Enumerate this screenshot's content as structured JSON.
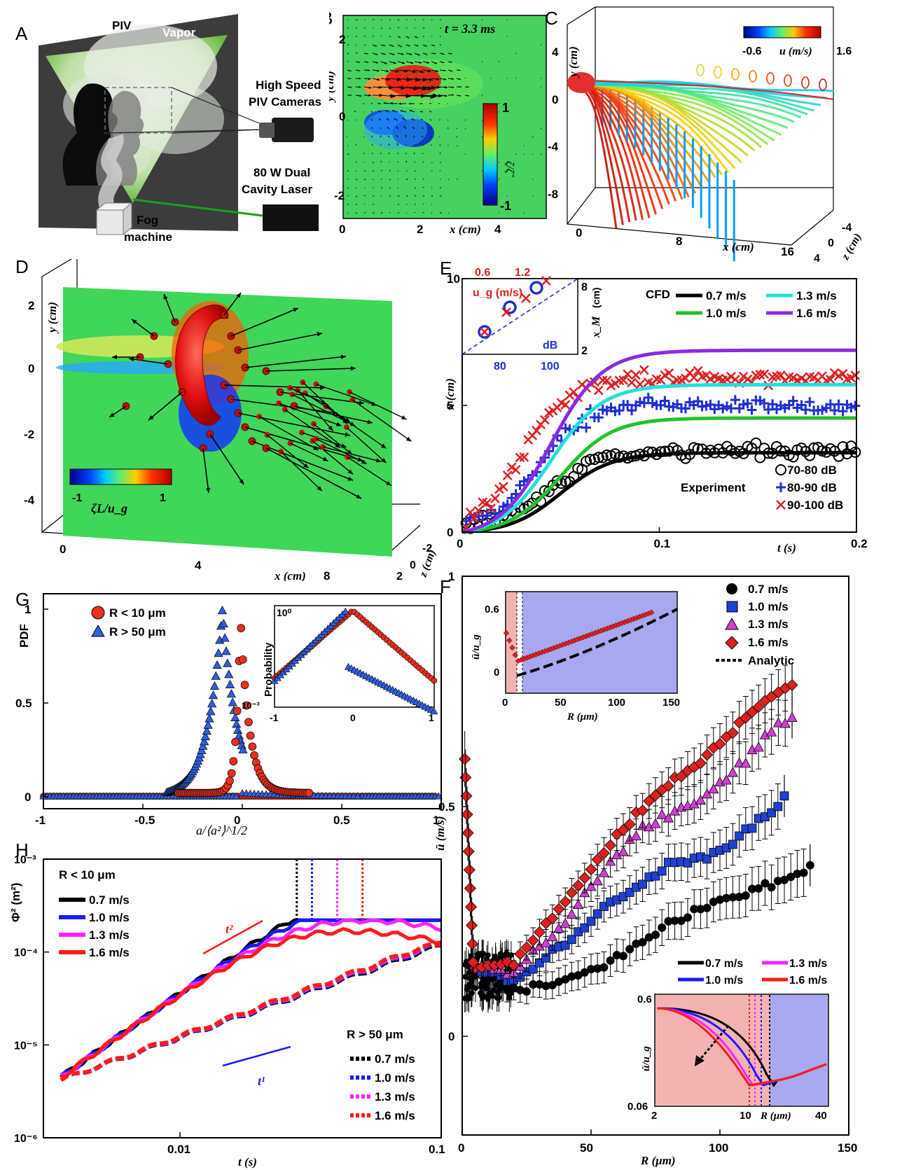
{
  "panels": {
    "A": {
      "letter": "A",
      "labels": {
        "piv": "PIV",
        "vapor": "Vapor",
        "cameras": [
          "High Speed",
          "PIV Cameras"
        ],
        "laser": [
          "80 W Dual",
          "Cavity Laser"
        ],
        "fog": [
          "Fog",
          "machine"
        ]
      }
    },
    "B": {
      "letter": "B",
      "time_label": "t = 3.3 ms",
      "xlabel": "x (cm)",
      "ylabel": "y (cm)",
      "xticks": [
        "0",
        "2",
        "4"
      ],
      "yticks": [
        "2",
        "0",
        "-2"
      ],
      "colorbar": {
        "max": "1",
        "min": "-1",
        "label": "ζ/ζ̂"
      }
    },
    "C": {
      "letter": "C",
      "ylabel": "y (cm)",
      "xlabel": "x (cm)",
      "zlabel": "z (cm)",
      "yticks": [
        "4",
        "0",
        "-4",
        "-8"
      ],
      "xticks": [
        "0",
        "8",
        "16"
      ],
      "zticks": [
        "-4",
        "0",
        "4"
      ],
      "colorbar": {
        "min": "-0.6",
        "max": "1.6",
        "label": "u (m/s)"
      }
    },
    "D": {
      "letter": "D",
      "ylabel": "y (cm)",
      "xlabel": "x (cm)",
      "zlabel": "z (cm)",
      "yticks": [
        "2",
        "0",
        "-2",
        "-4"
      ],
      "xticks": [
        "0",
        "4",
        "8"
      ],
      "zticks": [
        "-2",
        "0",
        "2"
      ],
      "colorbar": {
        "min": "-1",
        "max": "1",
        "label": "ζL/u_g"
      }
    },
    "E": {
      "letter": "E",
      "xlabel": "t (s)",
      "ylabel": "x̄ (cm)",
      "cfd_label": "CFD",
      "experiment_label": "Experiment",
      "inset": {
        "top_label": "u_g (m/s)",
        "top_ticks": [
          "0.6",
          "1.2"
        ],
        "bottom_label": "dB",
        "bottom_ticks": [
          "80",
          "100"
        ],
        "right_label": "x_M",
        "right_ticks": [
          "8",
          "2"
        ],
        "right_unit": "(cm)"
      }
    },
    "F": {
      "letter": "F",
      "xlabel": "R (μm)",
      "ylabel": "ū (m/s)",
      "analytic_label": "Analytic",
      "inset1": {
        "xlabel": "R (μm)",
        "ylabel": "ū/u_g",
        "xticks": [
          "0",
          "50",
          "100",
          "150"
        ],
        "yticks": [
          "0.6",
          "0"
        ]
      },
      "inset2": {
        "xlabel": "R (μm)",
        "ylabel": "ū/u_g",
        "xticks": [
          "2",
          "10",
          "40"
        ],
        "yticks": [
          "0.6",
          "0.06"
        ]
      }
    },
    "G": {
      "letter": "G",
      "xlabel": "a/⟨a²⟩^1/2",
      "ylabel": "PDF",
      "inset": {
        "ylabel": "Probability",
        "xticks": [
          "-1",
          "0",
          "1"
        ],
        "yticks": [
          "10⁰",
          "10⁻³"
        ]
      }
    },
    "H": {
      "letter": "H",
      "xlabel": "t (s)",
      "ylabel": "Φ² (m²)",
      "legend_small": "R < 10 μm",
      "legend_large": "R > 50 μm",
      "slope1": "t²",
      "slope2": "t¹"
    }
  },
  "colors": {
    "v07": "#000000",
    "v10": "#22c22a",
    "v13": "#22e0e0",
    "v16": "#8a2be2",
    "exp70": "#000000",
    "exp80": "#1f2fd6",
    "exp90": "#e02020",
    "h10": "#1a1aff",
    "h13": "#ff22ff",
    "h16": "#ff1a1a",
    "tri": "#3060e0",
    "circ": "#e83020",
    "diamond": "#e02020",
    "square": "#2040d0",
    "magtri": "#d040d0"
  },
  "chart_data": [
    {
      "id": "E",
      "type": "line",
      "xlabel": "t (s)",
      "ylabel": "x̄ (cm)",
      "xlim": [
        0,
        0.2
      ],
      "ylim": [
        0,
        10
      ],
      "xticks": [
        0,
        0.1,
        0.2
      ],
      "yticks": [
        0,
        5,
        10
      ],
      "cfd_series": [
        {
          "name": "0.7 m/s",
          "plateau": 3.2,
          "t_half": 0.05
        },
        {
          "name": "1.0 m/s",
          "plateau": 4.6,
          "t_half": 0.05
        },
        {
          "name": "1.3 m/s",
          "plateau": 6.0,
          "t_half": 0.045
        },
        {
          "name": "1.6 m/s",
          "plateau": 7.4,
          "t_half": 0.045
        }
      ],
      "experiment_series": [
        {
          "name": "70-80 dB",
          "plateau": 3.0
        },
        {
          "name": "80-90 dB",
          "plateau": 5.0
        },
        {
          "name": "90-100 dB",
          "plateau": 6.4
        }
      ]
    },
    {
      "id": "F",
      "type": "scatter",
      "xlabel": "R (μm)",
      "ylabel": "ū (m/s)",
      "xlim": [
        0,
        150
      ],
      "ylim": [
        0,
        1
      ],
      "xticks": [
        0,
        50,
        100,
        150
      ],
      "yticks": [
        0,
        0.5,
        1
      ],
      "series": [
        {
          "name": "0.7 m/s",
          "R": [
            5,
            20,
            40,
            60,
            80,
            90,
            100,
            110,
            120,
            130,
            135
          ],
          "u": [
            0.15,
            0.1,
            0.12,
            0.17,
            0.24,
            0.27,
            0.29,
            0.31,
            0.33,
            0.35,
            0.37
          ]
        },
        {
          "name": "1.0 m/s",
          "R": [
            5,
            20,
            40,
            55,
            70,
            80,
            90,
            100,
            110,
            115,
            120,
            125
          ],
          "u": [
            0.15,
            0.12,
            0.2,
            0.28,
            0.33,
            0.37,
            0.38,
            0.4,
            0.44,
            0.47,
            0.48,
            0.52
          ]
        },
        {
          "name": "1.3 m/s",
          "R": [
            5,
            20,
            40,
            55,
            70,
            80,
            90,
            100,
            110,
            115,
            120,
            128
          ],
          "u": [
            0.15,
            0.14,
            0.25,
            0.36,
            0.45,
            0.48,
            0.5,
            0.55,
            0.6,
            0.63,
            0.66,
            0.69
          ]
        },
        {
          "name": "1.6 m/s",
          "R": [
            5,
            20,
            40,
            55,
            70,
            80,
            90,
            100,
            110,
            115,
            120,
            128
          ],
          "u": [
            0.15,
            0.16,
            0.29,
            0.4,
            0.49,
            0.55,
            0.58,
            0.63,
            0.69,
            0.72,
            0.73,
            0.76
          ]
        }
      ]
    },
    {
      "id": "G",
      "type": "scatter",
      "xlabel": "a/⟨a²⟩^1/2",
      "ylabel": "PDF",
      "xlim": [
        -1,
        1
      ],
      "ylim": [
        0,
        1
      ],
      "xticks": [
        -1,
        -0.5,
        0,
        0.5,
        1
      ],
      "yticks": [
        0,
        0.5,
        1
      ],
      "series": [
        {
          "name": "R < 10 μm",
          "peak_x": -0.01
        },
        {
          "name": "R > 50 μm",
          "peak_x": -0.1
        }
      ]
    },
    {
      "id": "H",
      "type": "line",
      "xlabel": "t (s)",
      "ylabel": "Φ² (m²)",
      "xscale": "log",
      "yscale": "log",
      "xlim": [
        0.003,
        0.1
      ],
      "ylim": [
        1e-06,
        0.001
      ],
      "xticks": [
        0.01,
        0.1
      ],
      "yticks": [
        1e-06,
        1e-05,
        0.0001,
        0.001
      ],
      "series": [
        {
          "name": "0.7 m/s",
          "group": "R < 10 μm"
        },
        {
          "name": "1.0 m/s",
          "group": "R < 10 μm"
        },
        {
          "name": "1.3 m/s",
          "group": "R < 10 μm"
        },
        {
          "name": "1.6 m/s",
          "group": "R < 10 μm"
        },
        {
          "name": "0.7 m/s",
          "group": "R > 50 μm"
        },
        {
          "name": "1.0 m/s",
          "group": "R > 50 μm"
        },
        {
          "name": "1.3 m/s",
          "group": "R > 50 μm"
        },
        {
          "name": "1.6 m/s",
          "group": "R > 50 μm"
        }
      ]
    }
  ],
  "tick_text": {
    "e_x": [
      "0",
      "0.1",
      "0.2"
    ],
    "e_y": [
      "0",
      "5",
      "10"
    ],
    "f_x": [
      "0",
      "50",
      "100",
      "150"
    ],
    "f_y": [
      "0",
      "0.5",
      "1"
    ],
    "g_x": [
      "-1",
      "-0.5",
      "0",
      "0.5",
      "1"
    ],
    "g_y": [
      "0",
      "0.5",
      "1"
    ],
    "h_x": [
      "0.01",
      "0.1"
    ],
    "h_y": [
      "10⁻⁶",
      "10⁻⁵",
      "10⁻⁴",
      "10⁻³"
    ]
  }
}
